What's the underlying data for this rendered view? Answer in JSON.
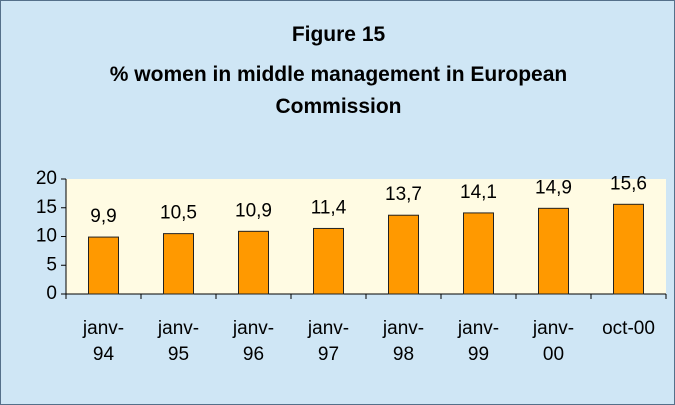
{
  "chart_data": {
    "type": "bar",
    "title": "Figure 15",
    "subtitle": "% women in middle management in European Commission",
    "categories": [
      "janv-94",
      "janv-95",
      "janv-96",
      "janv-97",
      "janv-98",
      "janv-99",
      "janv-00",
      "oct-00"
    ],
    "values": [
      9.9,
      10.5,
      10.9,
      11.4,
      13.7,
      14.1,
      14.9,
      15.6
    ],
    "value_labels": [
      "9,9",
      "10,5",
      "10,9",
      "11,4",
      "13,7",
      "14,1",
      "14,9",
      "15,6"
    ],
    "color": "#ff9900",
    "ylim": [
      0,
      20
    ],
    "yticks": [
      0,
      5,
      10,
      15,
      20
    ],
    "grid": false
  }
}
